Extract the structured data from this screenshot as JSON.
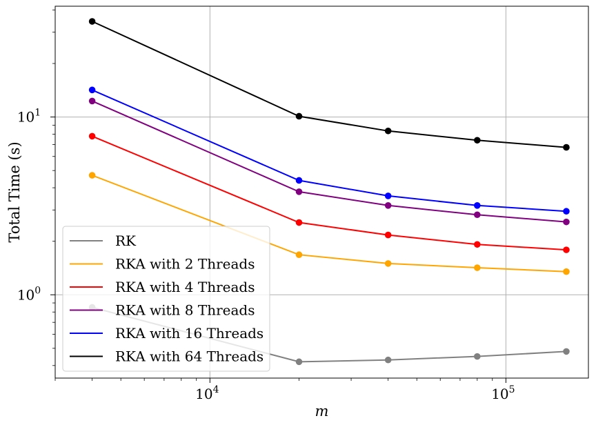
{
  "chart_data": {
    "type": "line",
    "title": "",
    "xlabel": "m",
    "ylabel": "Total Time (s)",
    "xscale": "log",
    "yscale": "log",
    "xlim": [
      3000,
      190000
    ],
    "ylim": [
      0.34,
      42
    ],
    "grid": true,
    "legend_position": "lower-left",
    "x": [
      4000,
      20000,
      40000,
      80000,
      160000
    ],
    "x_ticks": [
      {
        "value": 10000,
        "base": "10",
        "exp": "4"
      },
      {
        "value": 100000,
        "base": "10",
        "exp": "5"
      }
    ],
    "y_ticks": [
      {
        "value": 1,
        "base": "10",
        "exp": "0"
      },
      {
        "value": 10,
        "base": "10",
        "exp": "1"
      }
    ],
    "series": [
      {
        "name": "RK",
        "color": "#808080",
        "values": [
          0.85,
          0.42,
          0.43,
          0.45,
          0.48
        ]
      },
      {
        "name": "RKA with 2 Threads",
        "color": "#ffa500",
        "values": [
          4.7,
          1.68,
          1.5,
          1.42,
          1.35
        ]
      },
      {
        "name": "RKA with 4 Threads",
        "color": "#ff0000",
        "values": [
          7.8,
          2.55,
          2.17,
          1.92,
          1.79
        ]
      },
      {
        "name": "RKA with 8 Threads",
        "color": "#800080",
        "values": [
          12.3,
          3.8,
          3.18,
          2.82,
          2.57
        ]
      },
      {
        "name": "RKA with 16 Threads",
        "color": "#0000ff",
        "values": [
          14.2,
          4.4,
          3.6,
          3.18,
          2.95
        ]
      },
      {
        "name": "RKA with 64 Threads",
        "color": "#000000",
        "values": [
          34.5,
          10.1,
          8.35,
          7.4,
          6.75
        ]
      }
    ]
  }
}
